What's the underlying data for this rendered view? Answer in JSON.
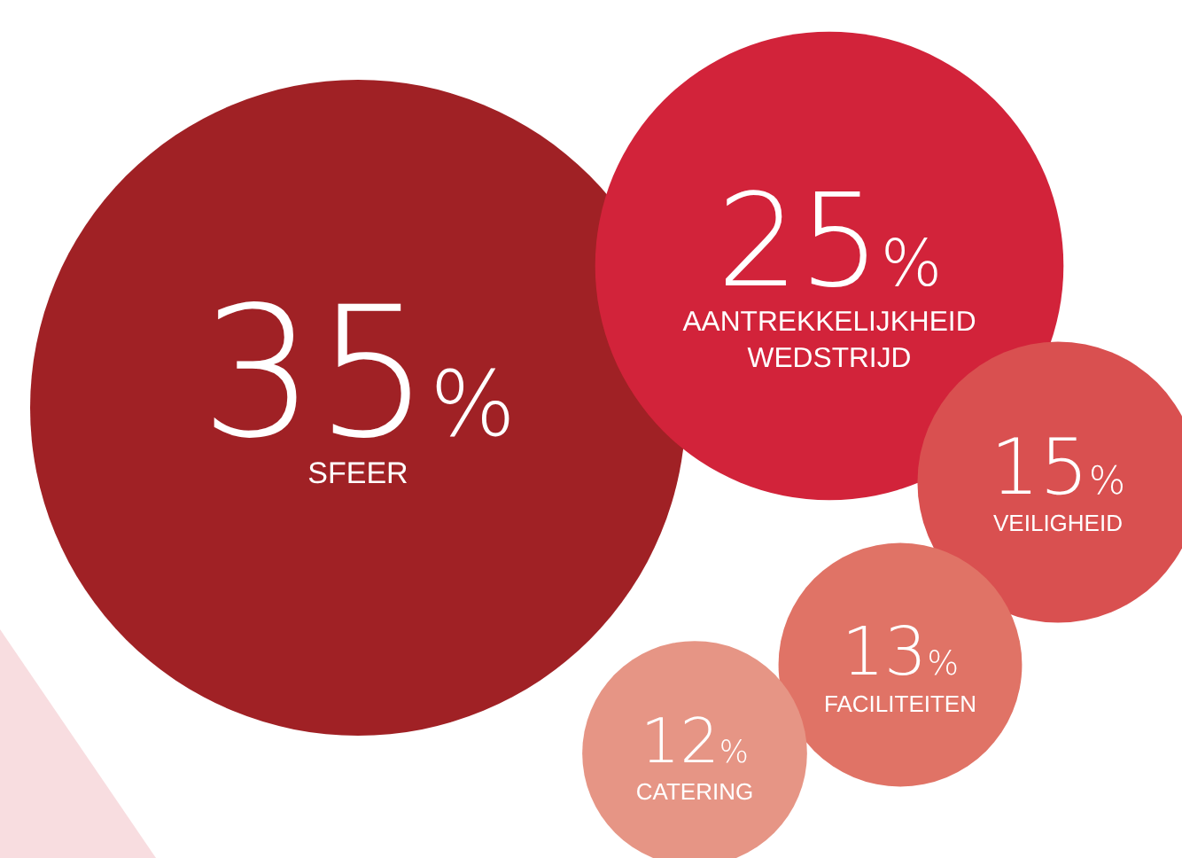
{
  "chart_data": {
    "type": "other",
    "categories": [
      "SFEER",
      "AANTREKKELIJKHEID WEDSTRIJD",
      "VEILIGHEID",
      "FACILITEITEN",
      "CATERING"
    ],
    "values": [
      35,
      25,
      15,
      13,
      12
    ],
    "value_labels": [
      "35%",
      "25%",
      "15%",
      "13%",
      "12%"
    ],
    "colors": [
      "#a02125",
      "#d2233a",
      "#d95050",
      "#e07366",
      "#e69585"
    ]
  }
}
